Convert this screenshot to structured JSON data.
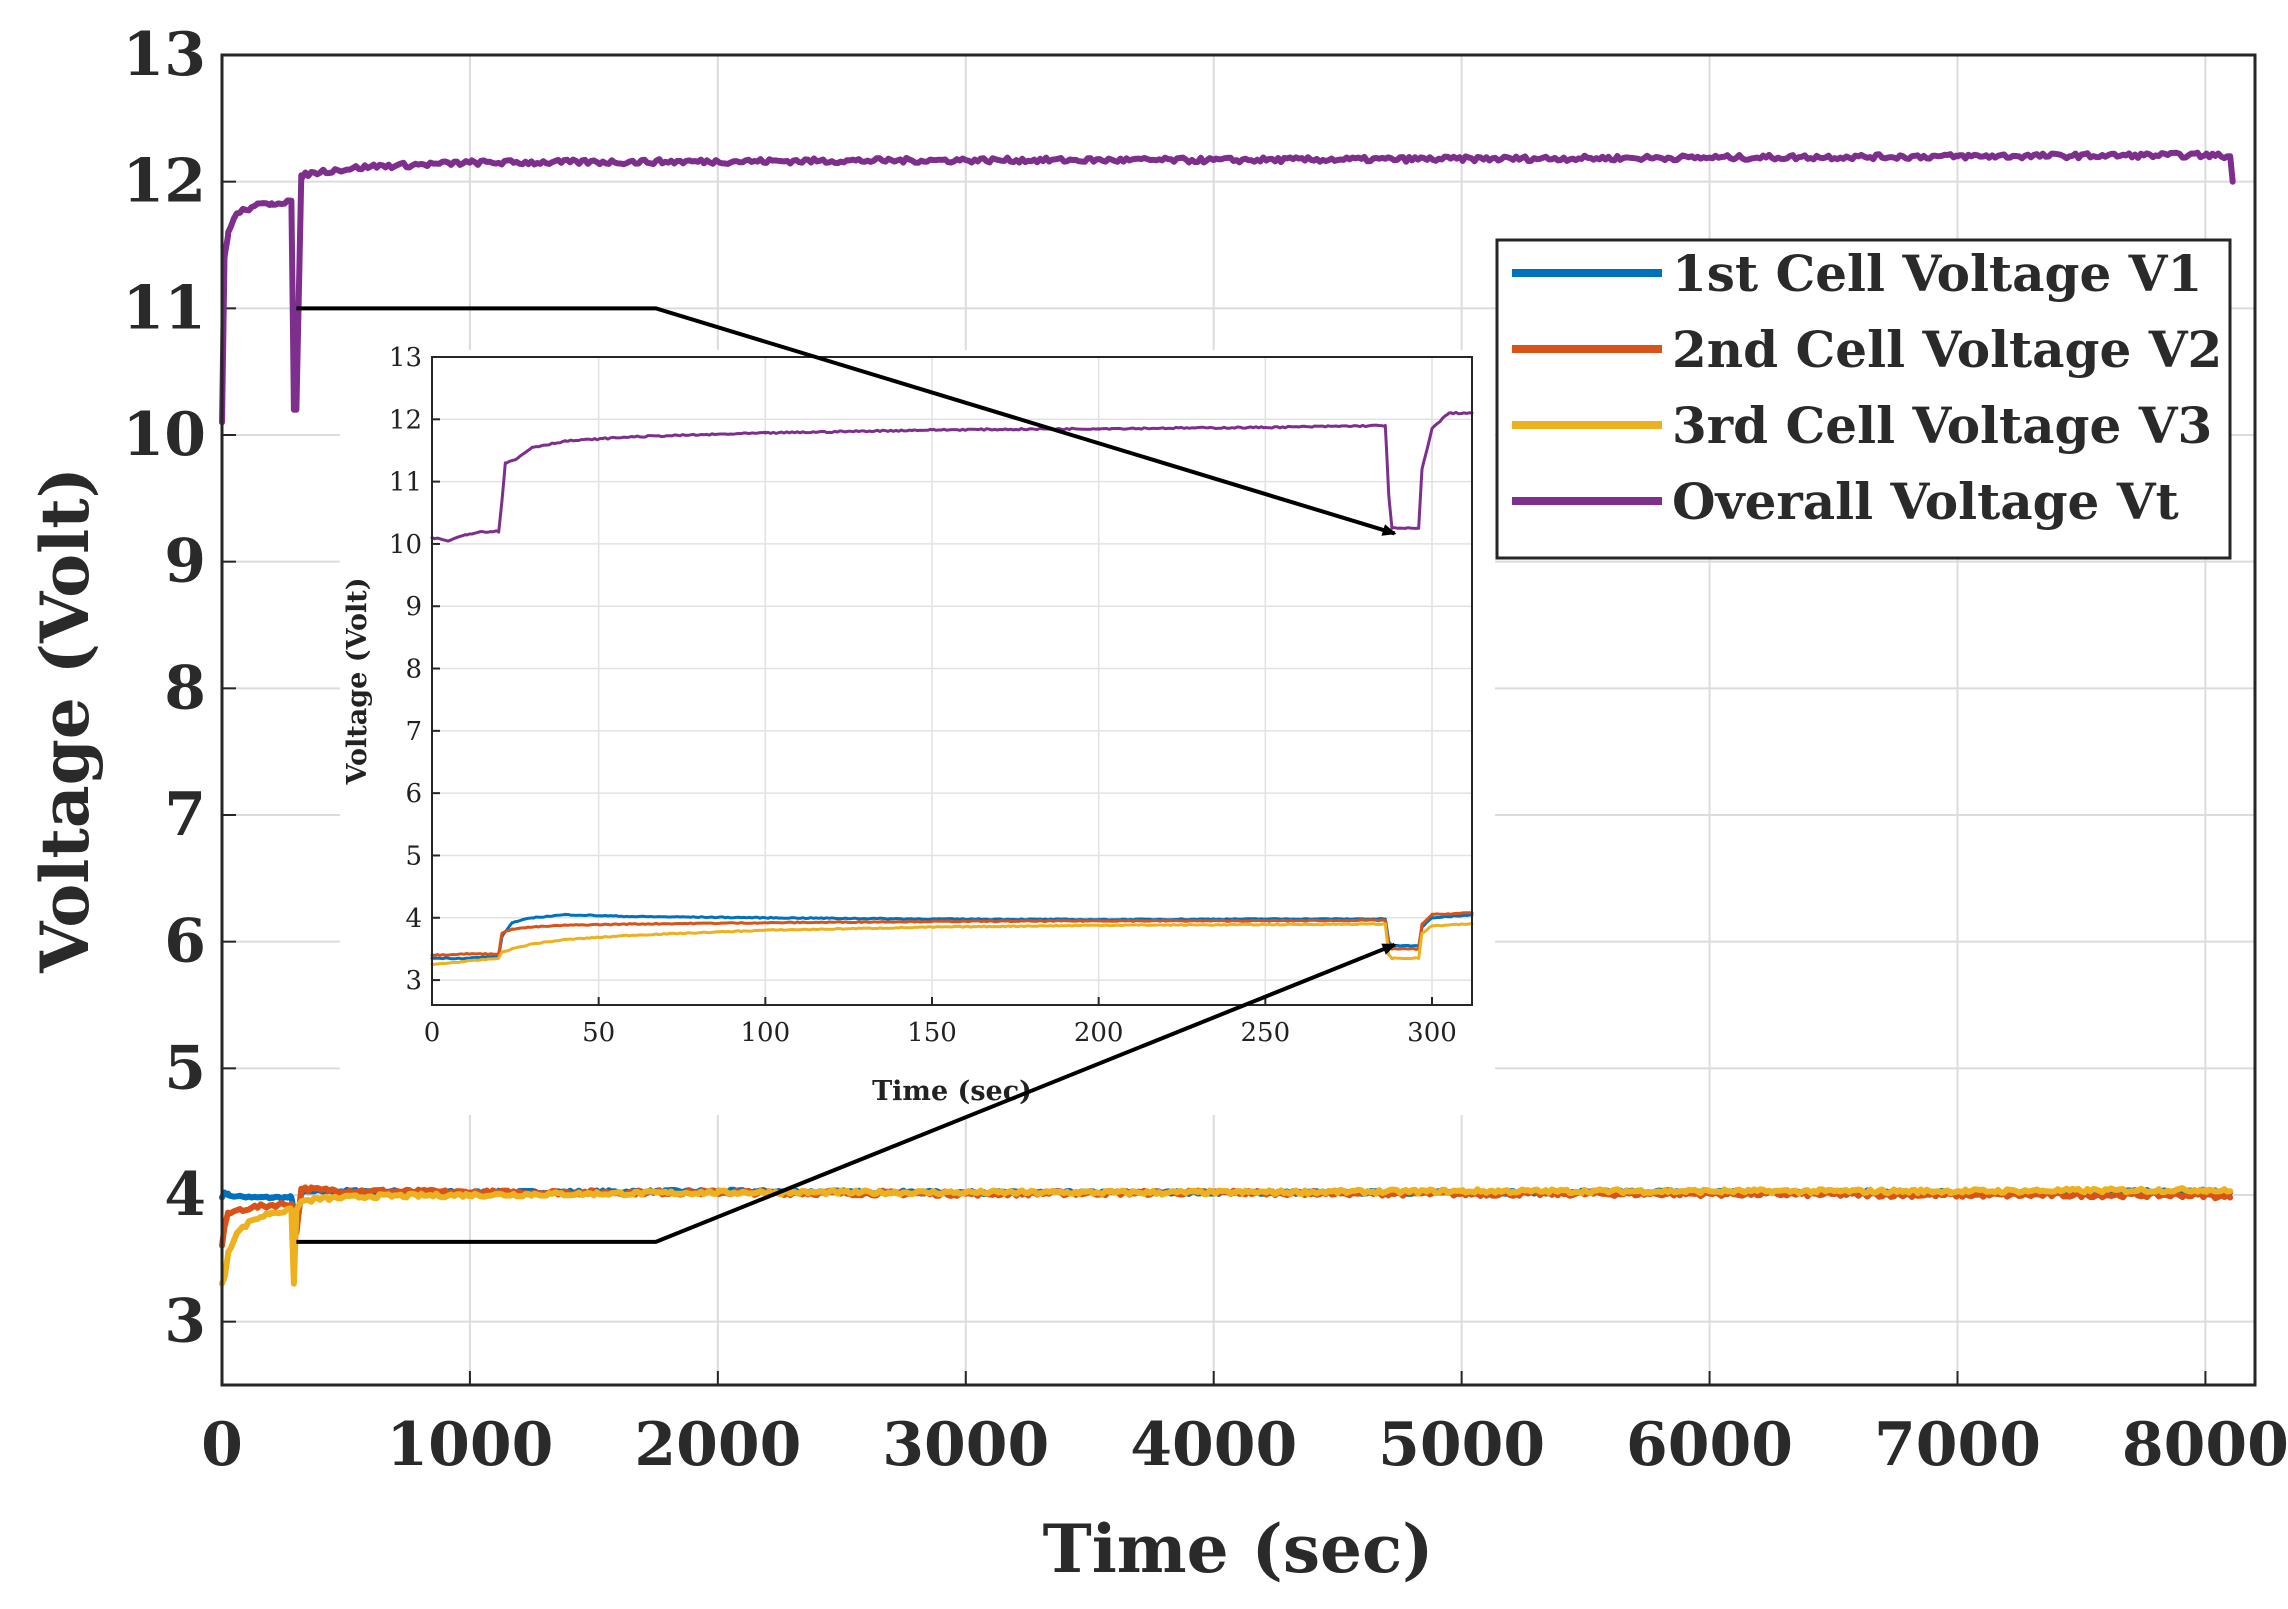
{
  "chart_data": [
    {
      "id": "main",
      "type": "line",
      "title": "",
      "xlabel": "Time (sec)",
      "ylabel": "Voltage (Volt)",
      "xlim": [
        0,
        8200
      ],
      "ylim": [
        2.5,
        13
      ],
      "xticks": [
        0,
        1000,
        2000,
        3000,
        4000,
        5000,
        6000,
        7000,
        8000
      ],
      "yticks": [
        3,
        4,
        5,
        6,
        7,
        8,
        9,
        10,
        11,
        12,
        13
      ],
      "grid": true,
      "legend_position": "right",
      "series": [
        {
          "name": "1st Cell Voltage V1",
          "color": "#0072BD",
          "x": [
            0,
            10,
            25,
            60,
            120,
            200,
            280,
            300,
            320,
            400,
            600,
            1000,
            2000,
            3000,
            4000,
            5000,
            6000,
            7000,
            8000,
            8100
          ],
          "y": [
            3.98,
            4.02,
            4.0,
            3.99,
            3.98,
            3.98,
            3.98,
            3.75,
            4.02,
            4.03,
            4.03,
            4.02,
            4.03,
            4.02,
            4.02,
            4.02,
            4.03,
            4.02,
            4.03,
            4.02
          ]
        },
        {
          "name": "2nd Cell Voltage V2",
          "color": "#D95319",
          "x": [
            0,
            10,
            25,
            60,
            120,
            200,
            280,
            300,
            320,
            400,
            600,
            1000,
            2000,
            3000,
            4000,
            5000,
            6000,
            7000,
            8000,
            8100
          ],
          "y": [
            3.6,
            3.75,
            3.85,
            3.88,
            3.9,
            3.92,
            3.93,
            3.7,
            4.05,
            4.04,
            4.03,
            4.02,
            4.02,
            4.01,
            4.02,
            4.01,
            4.01,
            4.0,
            4.0,
            3.98
          ]
        },
        {
          "name": "3rd Cell Voltage V3",
          "color": "#EDB120",
          "x": [
            0,
            10,
            25,
            60,
            120,
            200,
            280,
            290,
            300,
            320,
            400,
            600,
            1000,
            2000,
            3000,
            4000,
            5000,
            6000,
            7000,
            8000,
            8100
          ],
          "y": [
            3.3,
            3.35,
            3.55,
            3.7,
            3.8,
            3.86,
            3.88,
            3.3,
            3.88,
            3.95,
            3.97,
            3.99,
            4.0,
            4.02,
            4.02,
            4.02,
            4.03,
            4.03,
            4.03,
            4.04,
            4.03
          ]
        },
        {
          "name": "Overall Voltage Vt",
          "color": "#7E2F8E",
          "x": [
            0,
            10,
            25,
            60,
            120,
            200,
            280,
            290,
            300,
            320,
            400,
            600,
            1000,
            2000,
            3000,
            4000,
            5000,
            6000,
            7000,
            8000,
            8100,
            8110
          ],
          "y": [
            10.1,
            11.4,
            11.6,
            11.75,
            11.8,
            11.83,
            11.85,
            10.2,
            10.2,
            12.05,
            12.08,
            12.12,
            12.15,
            12.16,
            12.17,
            12.17,
            12.18,
            12.19,
            12.2,
            12.21,
            12.2,
            12.0
          ]
        }
      ],
      "annotations": [
        {
          "type": "zoom-arrow",
          "from": [
            300,
            11.0
          ],
          "via": [
            1750,
            11.0
          ],
          "to_inset": [
            290,
            10.2
          ]
        },
        {
          "type": "zoom-arrow",
          "from": [
            300,
            3.63
          ],
          "via": [
            1750,
            3.63
          ],
          "to_inset": [
            290,
            3.6
          ]
        }
      ]
    },
    {
      "id": "inset",
      "type": "line",
      "title": "",
      "xlabel": "Time (sec)",
      "ylabel": "Voltage (Volt)",
      "xlim": [
        0,
        312
      ],
      "ylim": [
        2.6,
        13
      ],
      "xticks": [
        0,
        50,
        100,
        150,
        200,
        250,
        300
      ],
      "yticks": [
        3,
        4,
        5,
        6,
        7,
        8,
        9,
        10,
        11,
        12,
        13
      ],
      "grid": true,
      "series": [
        {
          "name": "1st Cell Voltage V1",
          "color": "#0072BD",
          "x": [
            0,
            10,
            20,
            21,
            24,
            30,
            40,
            60,
            100,
            150,
            200,
            250,
            286,
            287,
            288,
            296,
            297,
            300,
            312
          ],
          "y": [
            3.35,
            3.35,
            3.38,
            3.7,
            3.92,
            4.0,
            4.05,
            4.02,
            4.0,
            3.98,
            3.97,
            3.98,
            3.98,
            3.62,
            3.55,
            3.55,
            3.85,
            4.0,
            4.05
          ]
        },
        {
          "name": "2nd Cell Voltage V2",
          "color": "#D95319",
          "x": [
            0,
            10,
            20,
            21,
            24,
            30,
            40,
            60,
            100,
            150,
            200,
            250,
            286,
            287,
            288,
            296,
            297,
            300,
            312
          ],
          "y": [
            3.4,
            3.42,
            3.42,
            3.75,
            3.82,
            3.85,
            3.88,
            3.9,
            3.92,
            3.94,
            3.95,
            3.95,
            3.96,
            3.55,
            3.5,
            3.5,
            3.9,
            4.05,
            4.08
          ]
        },
        {
          "name": "3rd Cell Voltage V3",
          "color": "#EDB120",
          "x": [
            0,
            10,
            20,
            21,
            24,
            30,
            40,
            60,
            100,
            150,
            200,
            250,
            286,
            287,
            288,
            296,
            297,
            300,
            312
          ],
          "y": [
            3.25,
            3.3,
            3.35,
            3.45,
            3.5,
            3.58,
            3.65,
            3.72,
            3.8,
            3.85,
            3.88,
            3.89,
            3.9,
            3.4,
            3.35,
            3.35,
            3.75,
            3.87,
            3.9
          ]
        },
        {
          "name": "Overall Voltage Vt",
          "color": "#7E2F8E",
          "x": [
            0,
            5,
            10,
            15,
            20,
            21,
            22,
            25,
            30,
            40,
            60,
            100,
            150,
            200,
            250,
            286,
            287,
            288,
            296,
            297,
            300,
            305,
            312
          ],
          "y": [
            10.1,
            10.05,
            10.15,
            10.2,
            10.2,
            10.7,
            11.3,
            11.35,
            11.55,
            11.65,
            11.72,
            11.78,
            11.83,
            11.85,
            11.87,
            11.9,
            10.8,
            10.25,
            10.25,
            11.2,
            11.85,
            12.1,
            12.1
          ]
        }
      ]
    }
  ]
}
